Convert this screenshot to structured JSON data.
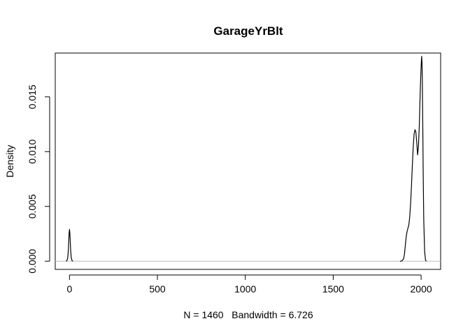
{
  "chart_data": {
    "type": "line",
    "title": "GarageYrBlt",
    "xlabel": "N = 1460   Bandwidth = 6.726",
    "ylabel": "Density",
    "xlim": [
      -81,
      2111
    ],
    "ylim": [
      -0.00075,
      0.019
    ],
    "x_ticks": [
      0,
      500,
      1000,
      1500,
      2000
    ],
    "x_tick_labels": [
      "0",
      "500",
      "1000",
      "1500",
      "2000"
    ],
    "y_ticks": [
      0.0,
      0.005,
      0.01,
      0.015
    ],
    "y_tick_labels": [
      "0.000",
      "0.005",
      "0.010",
      "0.015"
    ],
    "baseline": 0,
    "baseline_color": "#bebebe",
    "line_color": "#000000",
    "grid": false,
    "series": [
      {
        "x": [
          -20,
          -15,
          -10,
          -7,
          -4,
          -2,
          0,
          2,
          4,
          7,
          10,
          15,
          20
        ],
        "y": [
          0.0,
          4e-05,
          0.0003,
          0.0009,
          0.0019,
          0.0026,
          0.0029,
          0.0026,
          0.0019,
          0.0009,
          0.0003,
          4e-05,
          0.0
        ]
      },
      {
        "x": [
          1880,
          1890,
          1900,
          1905,
          1910,
          1915,
          1920,
          1925,
          1930,
          1935,
          1940,
          1945,
          1950,
          1955,
          1960,
          1965,
          1970,
          1975,
          1980,
          1985,
          1990,
          1995,
          2000,
          2003,
          2005,
          2007,
          2010,
          2012,
          2015,
          2020,
          2025,
          2030
        ],
        "y": [
          0.0,
          2e-05,
          0.0002,
          0.0006,
          0.0014,
          0.0022,
          0.0027,
          0.003,
          0.0033,
          0.004,
          0.0052,
          0.0068,
          0.0087,
          0.0104,
          0.0116,
          0.012,
          0.0118,
          0.0109,
          0.0097,
          0.0105,
          0.0125,
          0.0155,
          0.0178,
          0.0187,
          0.0182,
          0.0165,
          0.0115,
          0.0078,
          0.0038,
          0.0009,
          0.0001,
          0.0
        ]
      }
    ]
  }
}
